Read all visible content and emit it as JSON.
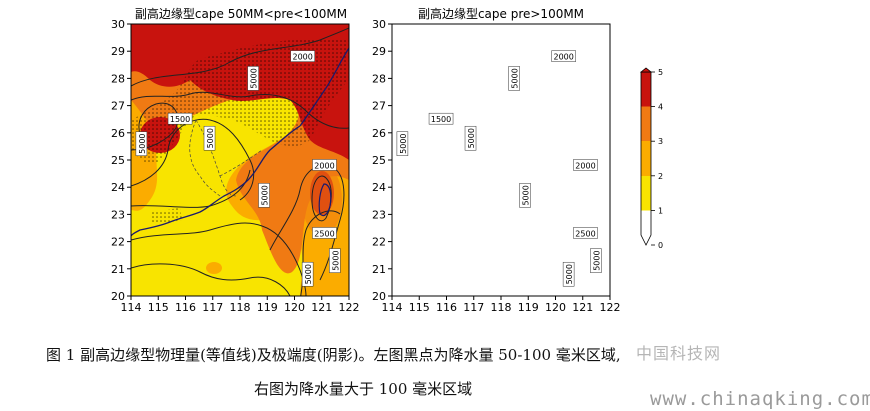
{
  "chart_data": [
    {
      "type": "heatmap",
      "title": "副高边缘型cape 50MM<pre<100MM",
      "xlabel": "",
      "ylabel": "",
      "x_ticks": [
        114,
        115,
        116,
        117,
        118,
        119,
        120,
        121,
        122
      ],
      "y_ticks": [
        20,
        21,
        22,
        23,
        24,
        25,
        26,
        27,
        28,
        29,
        30
      ],
      "xlim": [
        114,
        122
      ],
      "ylim": [
        20,
        30
      ],
      "contour_labels": [
        {
          "text": "2000",
          "lon": 120.3,
          "lat": 28.8
        },
        {
          "text": "5000",
          "lon": 118.5,
          "lat": 28.0
        },
        {
          "text": "1500",
          "lon": 115.8,
          "lat": 26.5
        },
        {
          "text": "5000",
          "lon": 114.4,
          "lat": 25.6
        },
        {
          "text": "5000",
          "lon": 116.9,
          "lat": 25.8
        },
        {
          "text": "2000",
          "lon": 121.1,
          "lat": 24.8
        },
        {
          "text": "5000",
          "lon": 118.9,
          "lat": 23.7
        },
        {
          "text": "2500",
          "lon": 121.1,
          "lat": 22.3
        },
        {
          "text": "5000",
          "lon": 121.5,
          "lat": 21.3
        },
        {
          "text": "5000",
          "lon": 120.5,
          "lat": 20.8
        }
      ],
      "stippling": "black dots mark 50-100 mm precipitation area"
    },
    {
      "type": "heatmap",
      "title": "副高边缘型cape pre>100MM",
      "xlabel": "",
      "ylabel": "",
      "x_ticks": [
        114,
        115,
        116,
        117,
        118,
        119,
        120,
        121,
        122
      ],
      "y_ticks": [
        20,
        21,
        22,
        23,
        24,
        25,
        26,
        27,
        28,
        29,
        30
      ],
      "xlim": [
        114,
        122
      ],
      "ylim": [
        20,
        30
      ],
      "contour_labels": [
        {
          "text": "2000",
          "lon": 120.3,
          "lat": 28.8
        },
        {
          "text": "5000",
          "lon": 118.5,
          "lat": 28.0
        },
        {
          "text": "1500",
          "lon": 115.8,
          "lat": 26.5
        },
        {
          "text": "5000",
          "lon": 114.4,
          "lat": 25.6
        },
        {
          "text": "5000",
          "lon": 116.9,
          "lat": 25.8
        },
        {
          "text": "2000",
          "lon": 121.1,
          "lat": 24.8
        },
        {
          "text": "5000",
          "lon": 118.9,
          "lat": 23.7
        },
        {
          "text": "2500",
          "lon": 121.1,
          "lat": 22.3
        },
        {
          "text": "5000",
          "lon": 121.5,
          "lat": 21.3
        },
        {
          "text": "5000",
          "lon": 120.5,
          "lat": 20.8
        }
      ]
    }
  ],
  "colorbar": {
    "ticks": [
      "0",
      "1",
      "2",
      "3",
      "4",
      "5"
    ],
    "colors": [
      "#ffffff",
      "#f8e400",
      "#fbac00",
      "#f07a13",
      "#c8130e"
    ]
  },
  "palette": {
    "level1": "#f8e400",
    "level2": "#fbac00",
    "level3": "#f07a13",
    "level4": "#c8130e"
  },
  "caption": {
    "line1": "图 1  副高边缘型物理量(等值线)及极端度(阴影)。左图黑点为降水量 50-100 毫米区域,",
    "line2": "右图为降水量大于 100 毫米区域"
  },
  "watermark": {
    "logo": "中国科技网",
    "url": "www.chinaqking.com"
  }
}
